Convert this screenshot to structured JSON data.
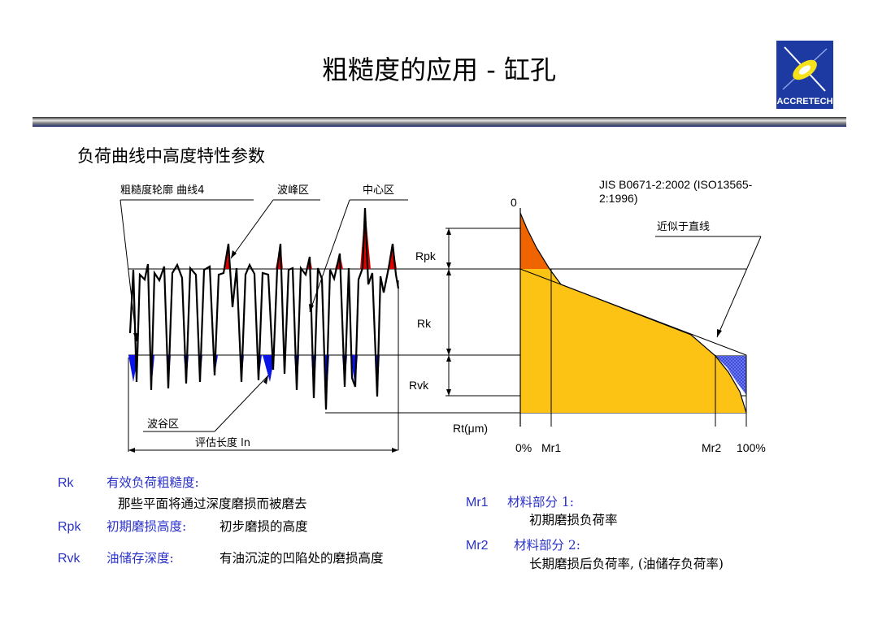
{
  "title": "粗糙度的应用 - 缸孔",
  "logo_text": "ACCRETECH",
  "subtitle": "负荷曲线中高度特性参数",
  "diagram": {
    "profile_label": "粗糙度轮廓 曲线4",
    "peak_zone": "波峰区",
    "core_zone": "中心区",
    "valley_zone": "波谷区",
    "eval_length": "评估长度 ln",
    "standard_line1": "JIS B0671-2:2002 (ISO13565-",
    "standard_line2": "2:1996)",
    "approx_line": "近似于直线",
    "zero": "0",
    "rpk": "Rpk",
    "rk": "Rk",
    "rvk": "Rvk",
    "rt": "Rt(μm)",
    "pct0": "0%",
    "mr1": "Mr1",
    "mr2": "Mr2",
    "pct100": "100%"
  },
  "definitions": {
    "rk_term": "Rk",
    "rk_title": "有效负荷粗糙度:",
    "rk_desc": "那些平面将通过深度磨损而被磨去",
    "rpk_term": "Rpk",
    "rpk_title": "初期磨损高度:",
    "rpk_desc": "初步磨损的高度",
    "rvk_term": "Rvk",
    "rvk_title": "油储存深度:",
    "rvk_desc": "有油沉淀的凹陷处的磨损高度",
    "mr1_term": "Mr1",
    "mr1_title": "材料部分 1:",
    "mr1_desc": "初期磨损负荷率",
    "mr2_term": "Mr2",
    "mr2_title": "材料部分 2:",
    "mr2_desc": "长期磨损后负荷率, (油储存负荷率)"
  },
  "colors": {
    "peak_fill": "#e00000",
    "valley_fill": "#0a14e6",
    "bearing_fill": "#fcc314",
    "bearing_peak_fill": "#f06400",
    "hatch_fill": "#5a6cf0",
    "term_blue": "#2b32c8"
  }
}
